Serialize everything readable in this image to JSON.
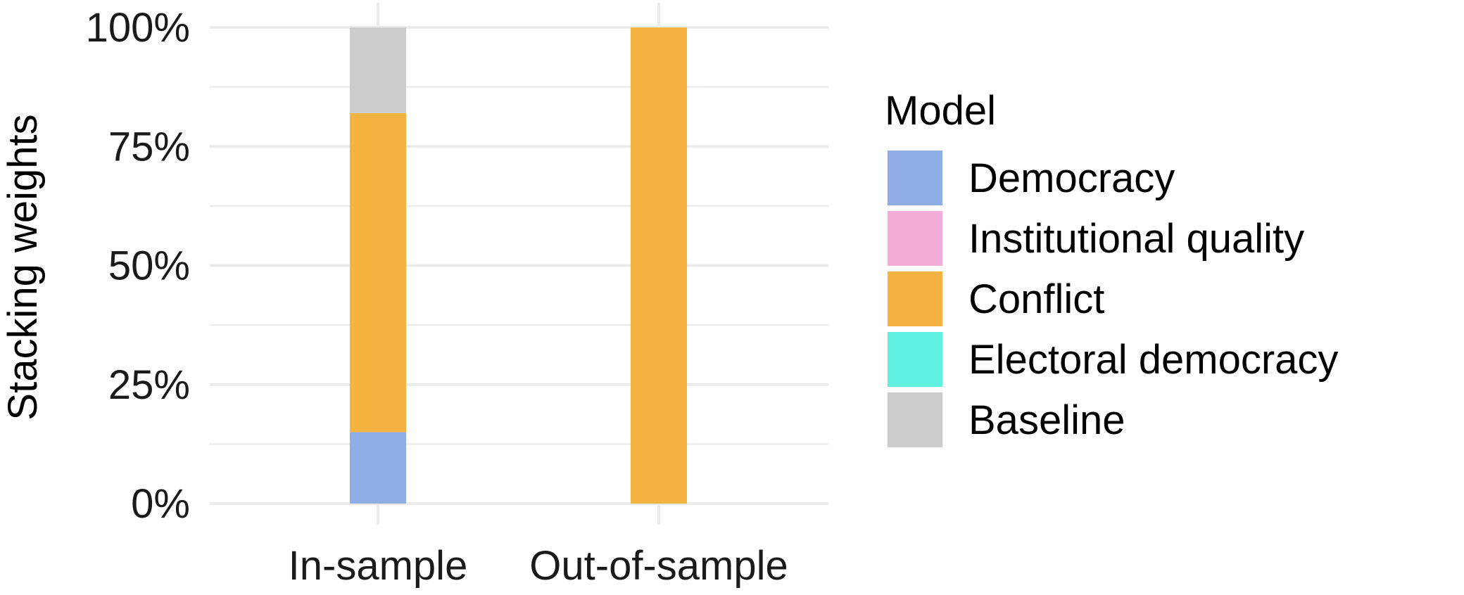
{
  "chart_data": {
    "type": "bar",
    "stacked": true,
    "categories": [
      "In-sample",
      "Out-of-sample"
    ],
    "series": [
      {
        "name": "Democracy",
        "color": "#8faee8",
        "values": [
          0.15,
          0.0
        ]
      },
      {
        "name": "Institutional quality",
        "color": "#f2acd8",
        "values": [
          0.0,
          0.0
        ]
      },
      {
        "name": "Conflict",
        "color": "#f5b342",
        "values": [
          0.67,
          1.0
        ]
      },
      {
        "name": "Electoral democracy",
        "color": "#5ff0e0",
        "values": [
          0.0,
          0.0
        ]
      },
      {
        "name": "Baseline",
        "color": "#cccccc",
        "values": [
          0.18,
          0.0
        ]
      }
    ],
    "ylabel": "Stacking weights",
    "ylim": [
      0,
      1
    ],
    "yticks": [
      0,
      0.25,
      0.5,
      0.75,
      1.0
    ],
    "ytick_labels": [
      "0%",
      "25%",
      "50%",
      "75%",
      "100%"
    ],
    "legend_title": "Model",
    "legend_position": "right",
    "grid": true
  }
}
